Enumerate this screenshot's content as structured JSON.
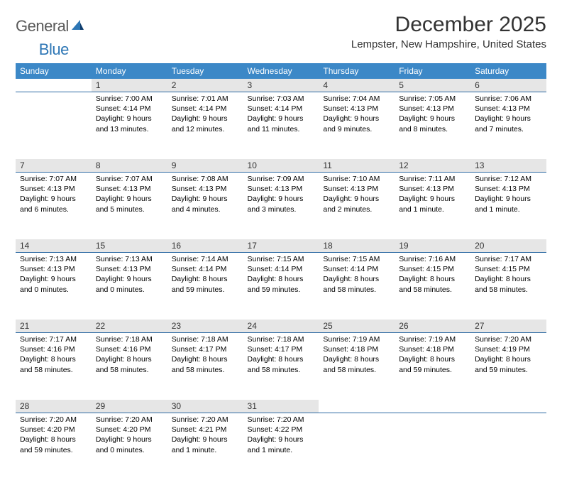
{
  "logo": {
    "word1": "General",
    "word2": "Blue"
  },
  "title": "December 2025",
  "location": "Lempster, New Hampshire, United States",
  "colors": {
    "header_bg": "#3c88c7",
    "header_text": "#ffffff",
    "daynum_bg": "#e6e6e6",
    "divider": "#2d6aa3",
    "logo_gray": "#5a5a5a",
    "logo_blue": "#2d76b5"
  },
  "day_headers": [
    "Sunday",
    "Monday",
    "Tuesday",
    "Wednesday",
    "Thursday",
    "Friday",
    "Saturday"
  ],
  "weeks": [
    {
      "nums": [
        "",
        "1",
        "2",
        "3",
        "4",
        "5",
        "6"
      ],
      "cells": [
        null,
        {
          "sunrise": "Sunrise: 7:00 AM",
          "sunset": "Sunset: 4:14 PM",
          "day1": "Daylight: 9 hours",
          "day2": "and 13 minutes."
        },
        {
          "sunrise": "Sunrise: 7:01 AM",
          "sunset": "Sunset: 4:14 PM",
          "day1": "Daylight: 9 hours",
          "day2": "and 12 minutes."
        },
        {
          "sunrise": "Sunrise: 7:03 AM",
          "sunset": "Sunset: 4:14 PM",
          "day1": "Daylight: 9 hours",
          "day2": "and 11 minutes."
        },
        {
          "sunrise": "Sunrise: 7:04 AM",
          "sunset": "Sunset: 4:13 PM",
          "day1": "Daylight: 9 hours",
          "day2": "and 9 minutes."
        },
        {
          "sunrise": "Sunrise: 7:05 AM",
          "sunset": "Sunset: 4:13 PM",
          "day1": "Daylight: 9 hours",
          "day2": "and 8 minutes."
        },
        {
          "sunrise": "Sunrise: 7:06 AM",
          "sunset": "Sunset: 4:13 PM",
          "day1": "Daylight: 9 hours",
          "day2": "and 7 minutes."
        }
      ]
    },
    {
      "nums": [
        "7",
        "8",
        "9",
        "10",
        "11",
        "12",
        "13"
      ],
      "cells": [
        {
          "sunrise": "Sunrise: 7:07 AM",
          "sunset": "Sunset: 4:13 PM",
          "day1": "Daylight: 9 hours",
          "day2": "and 6 minutes."
        },
        {
          "sunrise": "Sunrise: 7:07 AM",
          "sunset": "Sunset: 4:13 PM",
          "day1": "Daylight: 9 hours",
          "day2": "and 5 minutes."
        },
        {
          "sunrise": "Sunrise: 7:08 AM",
          "sunset": "Sunset: 4:13 PM",
          "day1": "Daylight: 9 hours",
          "day2": "and 4 minutes."
        },
        {
          "sunrise": "Sunrise: 7:09 AM",
          "sunset": "Sunset: 4:13 PM",
          "day1": "Daylight: 9 hours",
          "day2": "and 3 minutes."
        },
        {
          "sunrise": "Sunrise: 7:10 AM",
          "sunset": "Sunset: 4:13 PM",
          "day1": "Daylight: 9 hours",
          "day2": "and 2 minutes."
        },
        {
          "sunrise": "Sunrise: 7:11 AM",
          "sunset": "Sunset: 4:13 PM",
          "day1": "Daylight: 9 hours",
          "day2": "and 1 minute."
        },
        {
          "sunrise": "Sunrise: 7:12 AM",
          "sunset": "Sunset: 4:13 PM",
          "day1": "Daylight: 9 hours",
          "day2": "and 1 minute."
        }
      ]
    },
    {
      "nums": [
        "14",
        "15",
        "16",
        "17",
        "18",
        "19",
        "20"
      ],
      "cells": [
        {
          "sunrise": "Sunrise: 7:13 AM",
          "sunset": "Sunset: 4:13 PM",
          "day1": "Daylight: 9 hours",
          "day2": "and 0 minutes."
        },
        {
          "sunrise": "Sunrise: 7:13 AM",
          "sunset": "Sunset: 4:13 PM",
          "day1": "Daylight: 9 hours",
          "day2": "and 0 minutes."
        },
        {
          "sunrise": "Sunrise: 7:14 AM",
          "sunset": "Sunset: 4:14 PM",
          "day1": "Daylight: 8 hours",
          "day2": "and 59 minutes."
        },
        {
          "sunrise": "Sunrise: 7:15 AM",
          "sunset": "Sunset: 4:14 PM",
          "day1": "Daylight: 8 hours",
          "day2": "and 59 minutes."
        },
        {
          "sunrise": "Sunrise: 7:15 AM",
          "sunset": "Sunset: 4:14 PM",
          "day1": "Daylight: 8 hours",
          "day2": "and 58 minutes."
        },
        {
          "sunrise": "Sunrise: 7:16 AM",
          "sunset": "Sunset: 4:15 PM",
          "day1": "Daylight: 8 hours",
          "day2": "and 58 minutes."
        },
        {
          "sunrise": "Sunrise: 7:17 AM",
          "sunset": "Sunset: 4:15 PM",
          "day1": "Daylight: 8 hours",
          "day2": "and 58 minutes."
        }
      ]
    },
    {
      "nums": [
        "21",
        "22",
        "23",
        "24",
        "25",
        "26",
        "27"
      ],
      "cells": [
        {
          "sunrise": "Sunrise: 7:17 AM",
          "sunset": "Sunset: 4:16 PM",
          "day1": "Daylight: 8 hours",
          "day2": "and 58 minutes."
        },
        {
          "sunrise": "Sunrise: 7:18 AM",
          "sunset": "Sunset: 4:16 PM",
          "day1": "Daylight: 8 hours",
          "day2": "and 58 minutes."
        },
        {
          "sunrise": "Sunrise: 7:18 AM",
          "sunset": "Sunset: 4:17 PM",
          "day1": "Daylight: 8 hours",
          "day2": "and 58 minutes."
        },
        {
          "sunrise": "Sunrise: 7:18 AM",
          "sunset": "Sunset: 4:17 PM",
          "day1": "Daylight: 8 hours",
          "day2": "and 58 minutes."
        },
        {
          "sunrise": "Sunrise: 7:19 AM",
          "sunset": "Sunset: 4:18 PM",
          "day1": "Daylight: 8 hours",
          "day2": "and 58 minutes."
        },
        {
          "sunrise": "Sunrise: 7:19 AM",
          "sunset": "Sunset: 4:18 PM",
          "day1": "Daylight: 8 hours",
          "day2": "and 59 minutes."
        },
        {
          "sunrise": "Sunrise: 7:20 AM",
          "sunset": "Sunset: 4:19 PM",
          "day1": "Daylight: 8 hours",
          "day2": "and 59 minutes."
        }
      ]
    },
    {
      "nums": [
        "28",
        "29",
        "30",
        "31",
        "",
        "",
        ""
      ],
      "cells": [
        {
          "sunrise": "Sunrise: 7:20 AM",
          "sunset": "Sunset: 4:20 PM",
          "day1": "Daylight: 8 hours",
          "day2": "and 59 minutes."
        },
        {
          "sunrise": "Sunrise: 7:20 AM",
          "sunset": "Sunset: 4:20 PM",
          "day1": "Daylight: 9 hours",
          "day2": "and 0 minutes."
        },
        {
          "sunrise": "Sunrise: 7:20 AM",
          "sunset": "Sunset: 4:21 PM",
          "day1": "Daylight: 9 hours",
          "day2": "and 1 minute."
        },
        {
          "sunrise": "Sunrise: 7:20 AM",
          "sunset": "Sunset: 4:22 PM",
          "day1": "Daylight: 9 hours",
          "day2": "and 1 minute."
        },
        null,
        null,
        null
      ]
    }
  ]
}
